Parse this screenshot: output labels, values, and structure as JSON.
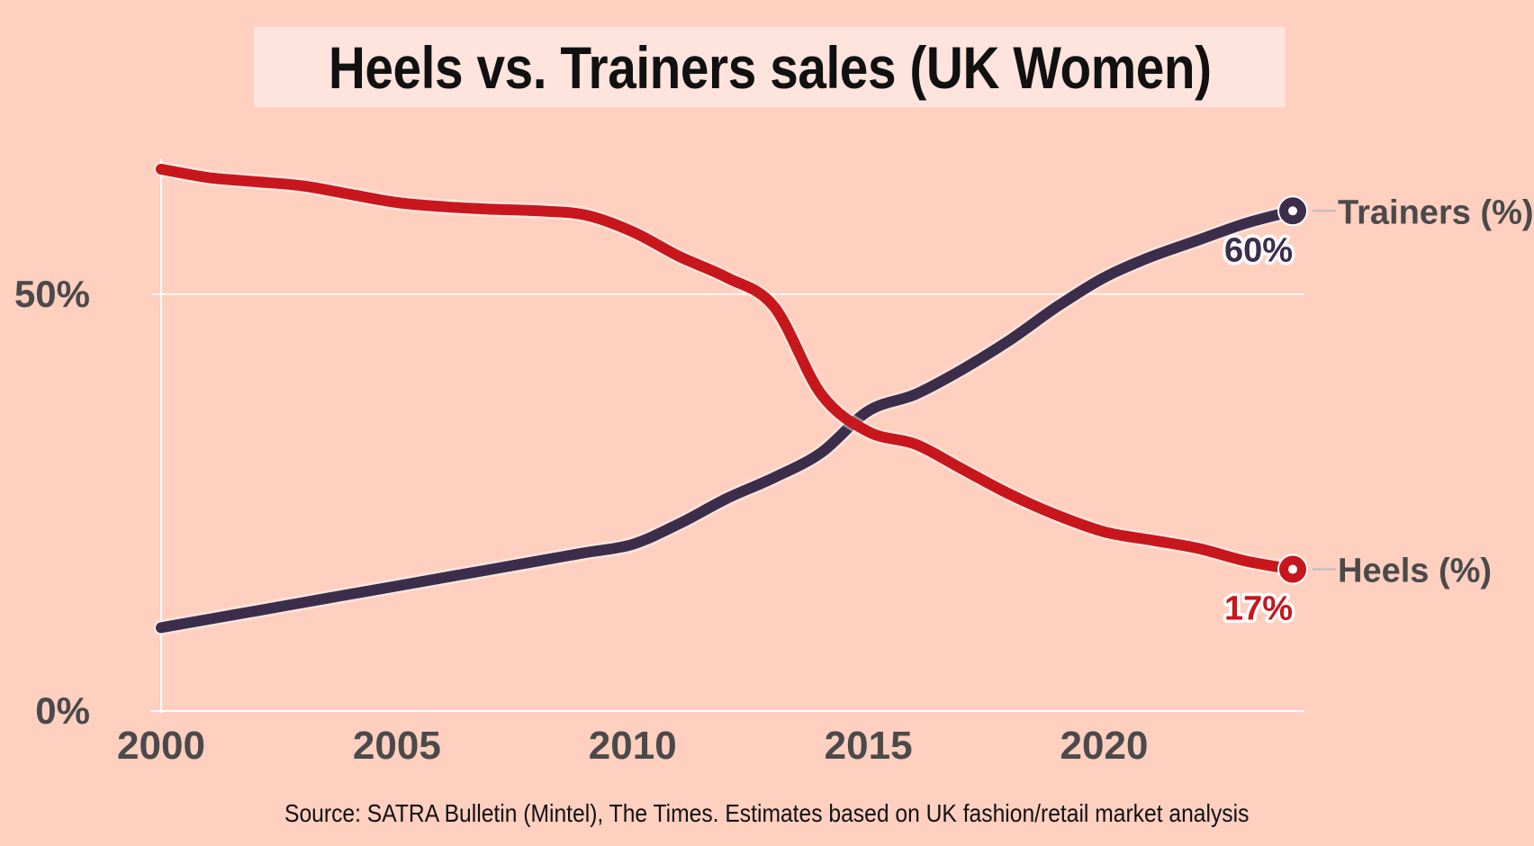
{
  "title": "Heels vs. Trainers sales (UK Women)",
  "source": "Source: SATRA Bulletin (Mintel), The Times. Estimates based on UK fashion/retail market analysis",
  "colors": {
    "background": "#ffcfc0",
    "title_box": "#ffe4de",
    "heels": "#c8161d",
    "trainers": "#3c2e4b",
    "axis_text": "#4a4a4a",
    "grid": "#ffffff"
  },
  "chart_data": {
    "type": "line",
    "title": "Heels vs. Trainers sales (UK Women)",
    "xlabel": "",
    "ylabel": "",
    "xlim": [
      2000,
      2024
    ],
    "ylim": [
      0,
      65
    ],
    "x_ticks": [
      2000,
      2005,
      2010,
      2015,
      2020
    ],
    "x_tick_labels": [
      "2000",
      "2005",
      "2010",
      "2015",
      "2020"
    ],
    "y_ticks": [
      0,
      50
    ],
    "y_tick_labels": [
      "0%",
      "50%"
    ],
    "grid": "horizontal",
    "legend": "direct labels at line ends (right)",
    "x": [
      2000,
      2001,
      2002,
      2003,
      2004,
      2005,
      2006,
      2007,
      2008,
      2009,
      2010,
      2011,
      2012,
      2013,
      2014,
      2015,
      2016,
      2017,
      2018,
      2019,
      2020,
      2021,
      2022,
      2023,
      2024
    ],
    "series": [
      {
        "name": "Trainers (%)",
        "end_label": "60%",
        "values": [
          10,
          11,
          12,
          13,
          14,
          15,
          16,
          17,
          18,
          19,
          20,
          22.5,
          25.5,
          28,
          31,
          36,
          38,
          41,
          44.5,
          48.5,
          52,
          54.5,
          56.5,
          58.5,
          60
        ]
      },
      {
        "name": "Heels (%)",
        "end_label": "17%",
        "values": [
          65,
          64,
          63.5,
          63,
          62,
          61,
          60.5,
          60.2,
          60,
          59.5,
          57.5,
          54.5,
          52,
          48.5,
          38,
          33.5,
          32,
          29,
          26,
          23.5,
          21.5,
          20.5,
          19.5,
          18,
          17
        ]
      }
    ]
  }
}
